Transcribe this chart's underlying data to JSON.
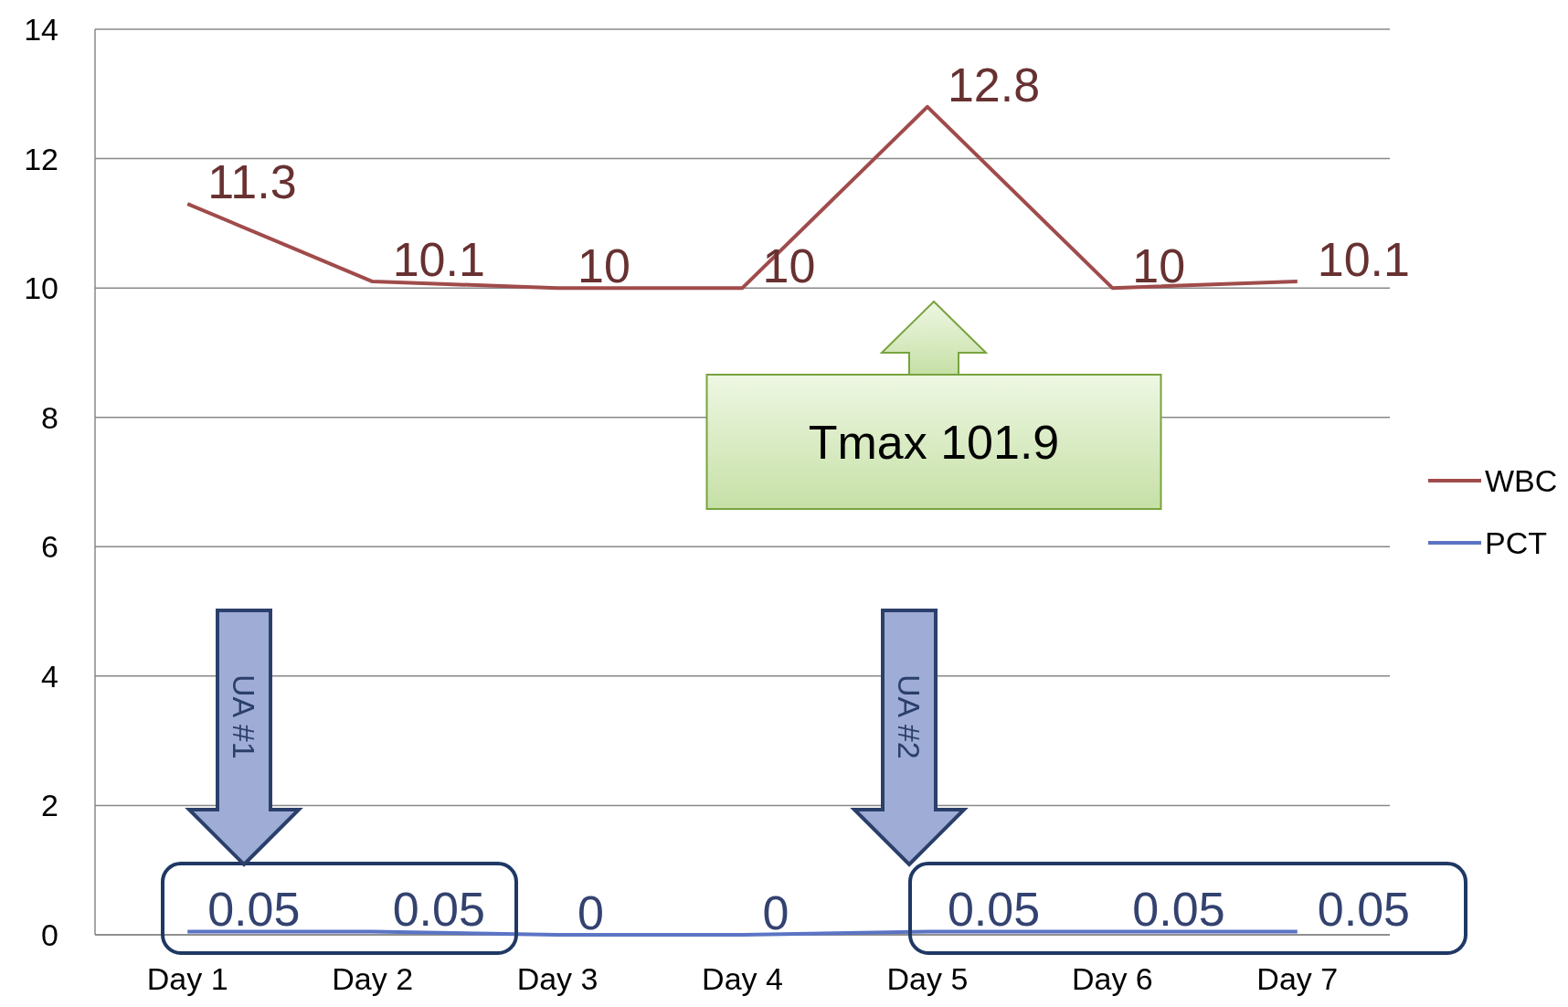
{
  "chart_data": {
    "type": "line",
    "categories": [
      "Day 1",
      "Day 2",
      "Day 3",
      "Day 4",
      "Day 5",
      "Day 6",
      "Day 7"
    ],
    "series": [
      {
        "name": "WBC",
        "color": "#a04b4b",
        "values": [
          11.3,
          10.1,
          10,
          10,
          12.8,
          10,
          10.1
        ]
      },
      {
        "name": "PCT",
        "color": "#5b74c4",
        "values": [
          0.05,
          0.05,
          0,
          0,
          0.05,
          0.05,
          0.05
        ]
      }
    ],
    "ylim": [
      0,
      14
    ],
    "yticks": [
      0,
      2,
      4,
      6,
      8,
      10,
      12,
      14
    ],
    "grid": "y",
    "legend": "right",
    "data_labels": true,
    "marker": "none",
    "line_style": "solid",
    "annotations": [
      "Tmax 101.9",
      "UA #1",
      "UA #2"
    ]
  }
}
